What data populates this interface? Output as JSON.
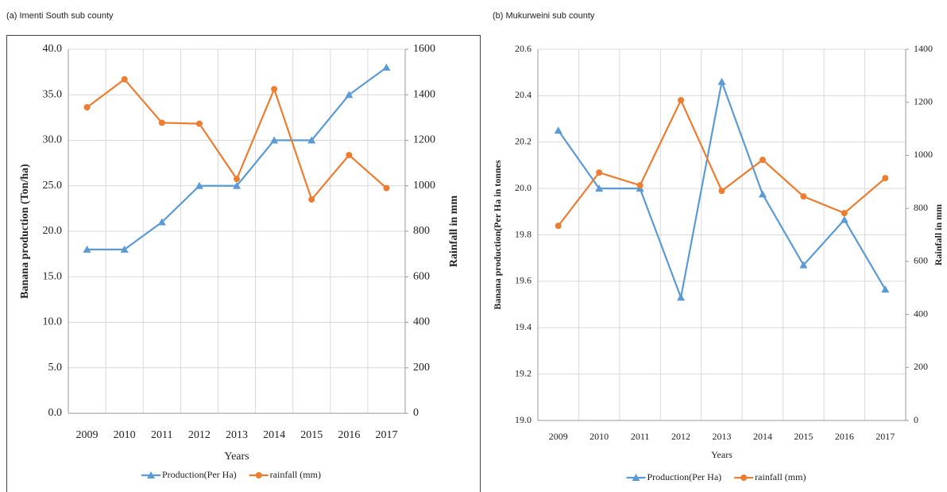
{
  "chart_data": [
    {
      "type": "line",
      "title": "(a) Imenti South sub county",
      "x_label": "Years",
      "y_label": "Banana   production   (Ton/ha)",
      "y2_label": "Rainfall  in  mm",
      "categories": [
        "2009",
        "2010",
        "2011",
        "2012",
        "2013",
        "2014",
        "2015",
        "2016",
        "2017"
      ],
      "series": [
        {
          "name": "Production(Per Ha)",
          "color": "#5b9bd5",
          "marker": "triangle",
          "values": [
            18,
            18,
            21,
            25,
            25,
            30,
            30,
            35,
            38
          ]
        },
        {
          "name": "rainfall (mm)",
          "color": "#ed7d31",
          "marker": "circle",
          "axis": "y2",
          "values": [
            1345,
            1468,
            1277,
            1273,
            1030,
            1425,
            940,
            1135,
            990
          ]
        }
      ],
      "ylim": [
        0,
        40
      ],
      "yticks": [
        {
          "value": 0,
          "label": "0.0"
        },
        {
          "value": 5,
          "label": "5.0"
        },
        {
          "value": 10,
          "label": "10.0"
        },
        {
          "value": 15,
          "label": "15.0"
        },
        {
          "value": 20,
          "label": "20.0"
        },
        {
          "value": 25,
          "label": "25.0"
        },
        {
          "value": 30,
          "label": "30.0"
        },
        {
          "value": 35,
          "label": "35.0"
        },
        {
          "value": 40,
          "label": "40.0"
        }
      ],
      "y2lim": [
        0,
        1600
      ],
      "y2ticks": [
        0,
        200,
        400,
        600,
        800,
        1000,
        1200,
        1400,
        1600
      ],
      "grid": true,
      "legend": "bottom"
    },
    {
      "type": "line",
      "title": "(b) Mukurweini  sub county",
      "x_label": "Years",
      "y_label": "Banana  production(Per Ha in tonnes",
      "y2_label": "Rainfall  in  mm",
      "categories": [
        "2009",
        "2010",
        "2011",
        "2012",
        "2013",
        "2014",
        "2015",
        "2016",
        "2017"
      ],
      "series": [
        {
          "name": "Production(Per Ha)",
          "color": "#5b9bd5",
          "marker": "triangle",
          "values": [
            20.25,
            20.0,
            20.0,
            19.53,
            20.46,
            19.975,
            19.67,
            19.865,
            19.565
          ]
        },
        {
          "name": "rainfall (mm)",
          "color": "#ed7d31",
          "marker": "circle",
          "axis": "y2",
          "values": [
            734,
            935,
            887,
            1208,
            866,
            983,
            845,
            782,
            914
          ]
        }
      ],
      "ylim": [
        19.0,
        20.6
      ],
      "yticks": [
        {
          "value": 19,
          "label": "19.0"
        },
        {
          "value": 19.2,
          "label": "19.2"
        },
        {
          "value": 19.4,
          "label": "19.4"
        },
        {
          "value": 19.6,
          "label": "19.6"
        },
        {
          "value": 19.8,
          "label": "19.8"
        },
        {
          "value": 20,
          "label": "20.0"
        },
        {
          "value": 20.2,
          "label": "20.2"
        },
        {
          "value": 20.4,
          "label": "20.4"
        },
        {
          "value": 20.6,
          "label": "20.6"
        }
      ],
      "y2lim": [
        0,
        1400
      ],
      "y2ticks": [
        0,
        200,
        400,
        600,
        800,
        1000,
        1200,
        1400
      ],
      "grid": true,
      "legend": "bottom"
    }
  ]
}
